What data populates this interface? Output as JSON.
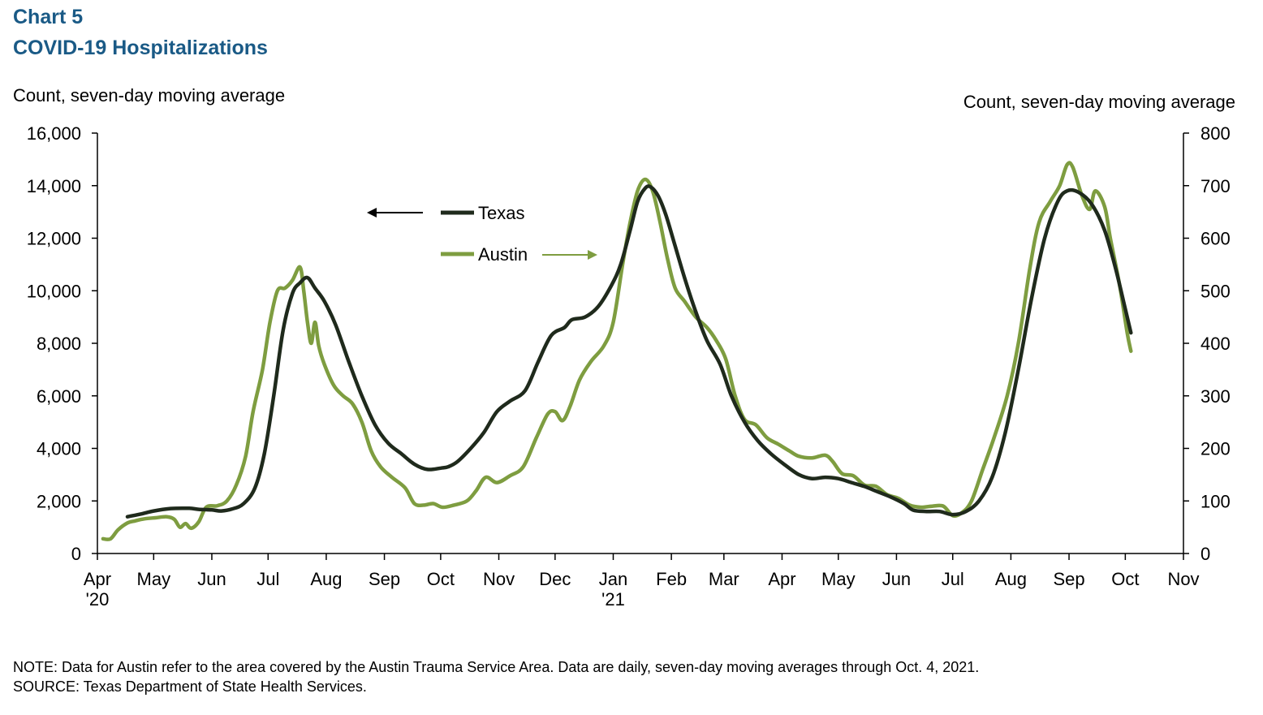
{
  "header": {
    "chart_number": "Chart 5",
    "title": "COVID-19 Hospitalizations"
  },
  "notes": {
    "note": "NOTE: Data for Austin refer to the area covered by the Austin Trauma Service Area. Data are daily, seven-day moving averages through Oct. 4, 2021.",
    "source": "SOURCE: Texas Department of State Health Services."
  },
  "chart_data": {
    "type": "line",
    "ylabel_left": "Count, seven-day moving average",
    "ylabel_right": "Count, seven-day moving average",
    "xlim": [
      "2020-04-01",
      "2021-11-01"
    ],
    "ylim_left": [
      0,
      16000
    ],
    "ylim_right": [
      0,
      800
    ],
    "yticks_left": [
      "0",
      "2,000",
      "4,000",
      "6,000",
      "8,000",
      "10,000",
      "12,000",
      "14,000",
      "16,000"
    ],
    "yticks_right": [
      "0",
      "100",
      "200",
      "300",
      "400",
      "500",
      "600",
      "700",
      "800"
    ],
    "xticks": [
      {
        "date": "2020-04-01",
        "label": "Apr",
        "year": "'20"
      },
      {
        "date": "2020-05-01",
        "label": "May",
        "year": ""
      },
      {
        "date": "2020-06-01",
        "label": "Jun",
        "year": ""
      },
      {
        "date": "2020-07-01",
        "label": "Jul",
        "year": ""
      },
      {
        "date": "2020-08-01",
        "label": "Aug",
        "year": ""
      },
      {
        "date": "2020-09-01",
        "label": "Sep",
        "year": ""
      },
      {
        "date": "2020-10-01",
        "label": "Oct",
        "year": ""
      },
      {
        "date": "2020-11-01",
        "label": "Nov",
        "year": ""
      },
      {
        "date": "2020-12-01",
        "label": "Dec",
        "year": ""
      },
      {
        "date": "2021-01-01",
        "label": "Jan",
        "year": "'21"
      },
      {
        "date": "2021-02-01",
        "label": "Feb",
        "year": ""
      },
      {
        "date": "2021-03-01",
        "label": "Mar",
        "year": ""
      },
      {
        "date": "2021-04-01",
        "label": "Apr",
        "year": ""
      },
      {
        "date": "2021-05-01",
        "label": "May",
        "year": ""
      },
      {
        "date": "2021-06-01",
        "label": "Jun",
        "year": ""
      },
      {
        "date": "2021-07-01",
        "label": "Jul",
        "year": ""
      },
      {
        "date": "2021-08-01",
        "label": "Aug",
        "year": ""
      },
      {
        "date": "2021-09-01",
        "label": "Sep",
        "year": ""
      },
      {
        "date": "2021-10-01",
        "label": "Oct",
        "year": ""
      },
      {
        "date": "2021-11-01",
        "label": "Nov",
        "year": ""
      }
    ],
    "grid": false,
    "legend_position": "top-center",
    "series": [
      {
        "name": "Texas",
        "axis": "left",
        "color": "#1f2a1c",
        "points": [
          [
            "2020-04-17",
            1400
          ],
          [
            "2020-04-24",
            1500
          ],
          [
            "2020-05-01",
            1620
          ],
          [
            "2020-05-10",
            1710
          ],
          [
            "2020-05-20",
            1720
          ],
          [
            "2020-05-25",
            1680
          ],
          [
            "2020-06-01",
            1660
          ],
          [
            "2020-06-06",
            1620
          ],
          [
            "2020-06-12",
            1700
          ],
          [
            "2020-06-18",
            1900
          ],
          [
            "2020-06-24",
            2500
          ],
          [
            "2020-06-29",
            3800
          ],
          [
            "2020-07-04",
            6000
          ],
          [
            "2020-07-09",
            8500
          ],
          [
            "2020-07-14",
            9900
          ],
          [
            "2020-07-18",
            10300
          ],
          [
            "2020-07-22",
            10500
          ],
          [
            "2020-07-26",
            10100
          ],
          [
            "2020-07-31",
            9600
          ],
          [
            "2020-08-06",
            8700
          ],
          [
            "2020-08-13",
            7300
          ],
          [
            "2020-08-20",
            6000
          ],
          [
            "2020-08-27",
            4900
          ],
          [
            "2020-09-03",
            4200
          ],
          [
            "2020-09-10",
            3800
          ],
          [
            "2020-09-17",
            3400
          ],
          [
            "2020-09-24",
            3200
          ],
          [
            "2020-10-01",
            3250
          ],
          [
            "2020-10-05",
            3300
          ],
          [
            "2020-10-10",
            3500
          ],
          [
            "2020-10-17",
            4000
          ],
          [
            "2020-10-24",
            4600
          ],
          [
            "2020-10-31",
            5400
          ],
          [
            "2020-11-07",
            5800
          ],
          [
            "2020-11-15",
            6200
          ],
          [
            "2020-11-22",
            7300
          ],
          [
            "2020-11-29",
            8300
          ],
          [
            "2020-12-06",
            8600
          ],
          [
            "2020-12-10",
            8900
          ],
          [
            "2020-12-17",
            9000
          ],
          [
            "2020-12-24",
            9400
          ],
          [
            "2020-12-31",
            10200
          ],
          [
            "2021-01-05",
            11000
          ],
          [
            "2021-01-10",
            12300
          ],
          [
            "2021-01-14",
            13400
          ],
          [
            "2021-01-18",
            13900
          ],
          [
            "2021-01-21",
            13950
          ],
          [
            "2021-01-25",
            13600
          ],
          [
            "2021-01-29",
            12900
          ],
          [
            "2021-02-03",
            11700
          ],
          [
            "2021-02-08",
            10500
          ],
          [
            "2021-02-14",
            9200
          ],
          [
            "2021-02-20",
            8100
          ],
          [
            "2021-02-27",
            7200
          ],
          [
            "2021-03-05",
            6000
          ],
          [
            "2021-03-12",
            5000
          ],
          [
            "2021-03-19",
            4300
          ],
          [
            "2021-03-26",
            3800
          ],
          [
            "2021-04-02",
            3400
          ],
          [
            "2021-04-10",
            3000
          ],
          [
            "2021-04-17",
            2850
          ],
          [
            "2021-04-24",
            2900
          ],
          [
            "2021-05-01",
            2850
          ],
          [
            "2021-05-08",
            2700
          ],
          [
            "2021-05-15",
            2550
          ],
          [
            "2021-05-22",
            2350
          ],
          [
            "2021-05-29",
            2150
          ],
          [
            "2021-06-05",
            1900
          ],
          [
            "2021-06-10",
            1650
          ],
          [
            "2021-06-17",
            1600
          ],
          [
            "2021-06-24",
            1600
          ],
          [
            "2021-07-01",
            1480
          ],
          [
            "2021-07-08",
            1600
          ],
          [
            "2021-07-15",
            2000
          ],
          [
            "2021-07-22",
            2900
          ],
          [
            "2021-07-29",
            4600
          ],
          [
            "2021-08-05",
            7000
          ],
          [
            "2021-08-12",
            9700
          ],
          [
            "2021-08-19",
            12000
          ],
          [
            "2021-08-26",
            13400
          ],
          [
            "2021-08-31",
            13800
          ],
          [
            "2021-09-06",
            13750
          ],
          [
            "2021-09-13",
            13300
          ],
          [
            "2021-09-20",
            12300
          ],
          [
            "2021-09-26",
            10800
          ],
          [
            "2021-10-01",
            9300
          ],
          [
            "2021-10-04",
            8400
          ]
        ]
      },
      {
        "name": "Austin",
        "axis": "right",
        "color": "#7e9d40",
        "points": [
          [
            "2020-04-04",
            28
          ],
          [
            "2020-04-08",
            28
          ],
          [
            "2020-04-12",
            45
          ],
          [
            "2020-04-17",
            58
          ],
          [
            "2020-04-21",
            62
          ],
          [
            "2020-04-26",
            66
          ],
          [
            "2020-05-02",
            68
          ],
          [
            "2020-05-08",
            70
          ],
          [
            "2020-05-12",
            65
          ],
          [
            "2020-05-15",
            50
          ],
          [
            "2020-05-18",
            57
          ],
          [
            "2020-05-21",
            48
          ],
          [
            "2020-05-25",
            60
          ],
          [
            "2020-05-29",
            88
          ],
          [
            "2020-06-04",
            91
          ],
          [
            "2020-06-09",
            100
          ],
          [
            "2020-06-14",
            130
          ],
          [
            "2020-06-19",
            185
          ],
          [
            "2020-06-23",
            270
          ],
          [
            "2020-06-28",
            350
          ],
          [
            "2020-07-02",
            440
          ],
          [
            "2020-07-06",
            500
          ],
          [
            "2020-07-10",
            505
          ],
          [
            "2020-07-14",
            520
          ],
          [
            "2020-07-18",
            545
          ],
          [
            "2020-07-20",
            500
          ],
          [
            "2020-07-22",
            440
          ],
          [
            "2020-07-24",
            400
          ],
          [
            "2020-07-26",
            440
          ],
          [
            "2020-07-28",
            395
          ],
          [
            "2020-07-31",
            360
          ],
          [
            "2020-08-05",
            320
          ],
          [
            "2020-08-10",
            300
          ],
          [
            "2020-08-15",
            285
          ],
          [
            "2020-08-20",
            250
          ],
          [
            "2020-08-25",
            195
          ],
          [
            "2020-08-30",
            165
          ],
          [
            "2020-09-05",
            145
          ],
          [
            "2020-09-12",
            125
          ],
          [
            "2020-09-17",
            95
          ],
          [
            "2020-09-22",
            92
          ],
          [
            "2020-09-27",
            95
          ],
          [
            "2020-10-02",
            88
          ],
          [
            "2020-10-08",
            92
          ],
          [
            "2020-10-15",
            100
          ],
          [
            "2020-10-20",
            120
          ],
          [
            "2020-10-25",
            145
          ],
          [
            "2020-10-31",
            135
          ],
          [
            "2020-11-07",
            148
          ],
          [
            "2020-11-14",
            165
          ],
          [
            "2020-11-21",
            220
          ],
          [
            "2020-11-27",
            265
          ],
          [
            "2020-12-01",
            270
          ],
          [
            "2020-12-05",
            253
          ],
          [
            "2020-12-09",
            280
          ],
          [
            "2020-12-14",
            330
          ],
          [
            "2020-12-20",
            365
          ],
          [
            "2020-12-27",
            395
          ],
          [
            "2021-01-01",
            440
          ],
          [
            "2021-01-06",
            550
          ],
          [
            "2021-01-10",
            630
          ],
          [
            "2021-01-14",
            690
          ],
          [
            "2021-01-18",
            712
          ],
          [
            "2021-01-22",
            690
          ],
          [
            "2021-01-26",
            630
          ],
          [
            "2021-01-30",
            560
          ],
          [
            "2021-02-03",
            505
          ],
          [
            "2021-02-08",
            480
          ],
          [
            "2021-02-14",
            450
          ],
          [
            "2021-02-20",
            430
          ],
          [
            "2021-02-25",
            405
          ],
          [
            "2021-03-02",
            370
          ],
          [
            "2021-03-07",
            300
          ],
          [
            "2021-03-12",
            255
          ],
          [
            "2021-03-18",
            245
          ],
          [
            "2021-03-24",
            220
          ],
          [
            "2021-03-30",
            208
          ],
          [
            "2021-04-05",
            195
          ],
          [
            "2021-04-10",
            185
          ],
          [
            "2021-04-17",
            182
          ],
          [
            "2021-04-24",
            187
          ],
          [
            "2021-04-28",
            175
          ],
          [
            "2021-05-03",
            152
          ],
          [
            "2021-05-09",
            148
          ],
          [
            "2021-05-15",
            130
          ],
          [
            "2021-05-21",
            128
          ],
          [
            "2021-05-27",
            112
          ],
          [
            "2021-06-02",
            105
          ],
          [
            "2021-06-08",
            92
          ],
          [
            "2021-06-14",
            88
          ],
          [
            "2021-06-20",
            90
          ],
          [
            "2021-06-26",
            90
          ],
          [
            "2021-07-01",
            72
          ],
          [
            "2021-07-06",
            78
          ],
          [
            "2021-07-11",
            100
          ],
          [
            "2021-07-17",
            160
          ],
          [
            "2021-07-23",
            220
          ],
          [
            "2021-07-30",
            300
          ],
          [
            "2021-08-05",
            400
          ],
          [
            "2021-08-11",
            540
          ],
          [
            "2021-08-16",
            630
          ],
          [
            "2021-08-22",
            670
          ],
          [
            "2021-08-27",
            700
          ],
          [
            "2021-08-31",
            740
          ],
          [
            "2021-09-03",
            735
          ],
          [
            "2021-09-08",
            680
          ],
          [
            "2021-09-12",
            655
          ],
          [
            "2021-09-15",
            690
          ],
          [
            "2021-09-20",
            660
          ],
          [
            "2021-09-23",
            600
          ],
          [
            "2021-09-28",
            510
          ],
          [
            "2021-10-02",
            420
          ],
          [
            "2021-10-04",
            385
          ]
        ]
      }
    ],
    "legend": {
      "texas_label": "Texas",
      "austin_label": "Austin"
    }
  }
}
